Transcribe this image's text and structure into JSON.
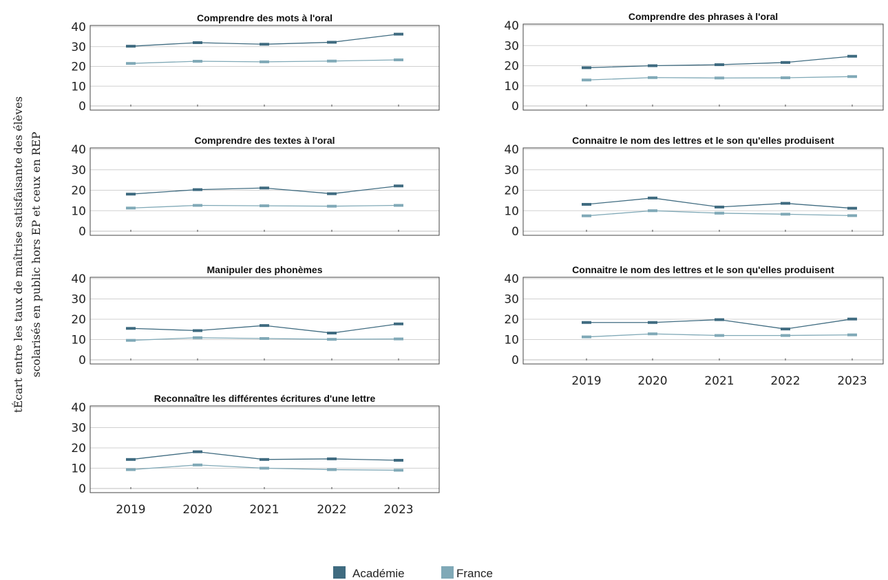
{
  "chart_data": {
    "type": "line",
    "ylabel": "tÉcart entre les taux de maîtrise satisfaisante des élèves scolarisés en public hors EP et ceux en REP",
    "ylabel_lines": [
      "tÉcart entre les taux de maîtrise satisfaisante des élèves",
      "scolarisés en public hors EP et ceux en REP"
    ],
    "x": [
      "2019",
      "2020",
      "2021",
      "2022",
      "2023"
    ],
    "ylim": [
      0,
      40
    ],
    "yticks": [
      0,
      10,
      20,
      30,
      40
    ],
    "grid": true,
    "legend_position": "bottom-center",
    "colors": {
      "Académie": "#3f6b80",
      "France": "#80a9b7"
    },
    "legend": [
      "Académie",
      "France"
    ],
    "panels": [
      {
        "title": "Comprendre des mots à l'oral",
        "column": "left",
        "series": [
          {
            "name": "Académie",
            "values": [
              30.2,
              32.0,
              31.2,
              32.2,
              36.3
            ]
          },
          {
            "name": "France",
            "values": [
              21.5,
              22.6,
              22.3,
              22.7,
              23.3
            ]
          }
        ]
      },
      {
        "title": "Comprendre des textes à l'oral",
        "column": "left",
        "series": [
          {
            "name": "Académie",
            "values": [
              18.1,
              20.3,
              21.1,
              18.3,
              22.1
            ]
          },
          {
            "name": "France",
            "values": [
              11.3,
              12.6,
              12.4,
              12.2,
              12.6
            ]
          }
        ]
      },
      {
        "title": "Manipuler des phonèmes",
        "column": "left",
        "series": [
          {
            "name": "Académie",
            "values": [
              15.5,
              14.4,
              16.9,
              13.2,
              17.7
            ]
          },
          {
            "name": "France",
            "values": [
              9.6,
              10.9,
              10.5,
              10.1,
              10.3
            ]
          }
        ]
      },
      {
        "title": "Reconnaître les différentes écritures d'une lettre",
        "column": "left",
        "series": [
          {
            "name": "Académie",
            "values": [
              14.3,
              18.1,
              14.3,
              14.6,
              13.9
            ]
          },
          {
            "name": "France",
            "values": [
              9.3,
              11.6,
              10.0,
              9.3,
              9.0
            ]
          }
        ]
      },
      {
        "title": "Comprendre des phrases à l'oral",
        "column": "right",
        "series": [
          {
            "name": "Académie",
            "values": [
              19.0,
              20.0,
              20.5,
              21.6,
              24.7
            ]
          },
          {
            "name": "France",
            "values": [
              12.9,
              14.1,
              13.9,
              14.0,
              14.6
            ]
          }
        ]
      },
      {
        "title": "Connaitre le nom des lettres et le son qu'elles produisent",
        "column": "right",
        "series": [
          {
            "name": "Académie",
            "values": [
              13.1,
              16.2,
              11.8,
              13.6,
              11.2
            ]
          },
          {
            "name": "France",
            "values": [
              7.5,
              10.0,
              8.8,
              8.3,
              7.6
            ]
          }
        ]
      },
      {
        "title": "Connaitre le nom des lettres et le son qu'elles produisent",
        "column": "right",
        "series": [
          {
            "name": "Académie",
            "values": [
              18.4,
              18.4,
              19.8,
              15.2,
              20.1
            ]
          },
          {
            "name": "France",
            "values": [
              11.3,
              12.8,
              12.0,
              12.0,
              12.3
            ]
          }
        ]
      }
    ]
  }
}
